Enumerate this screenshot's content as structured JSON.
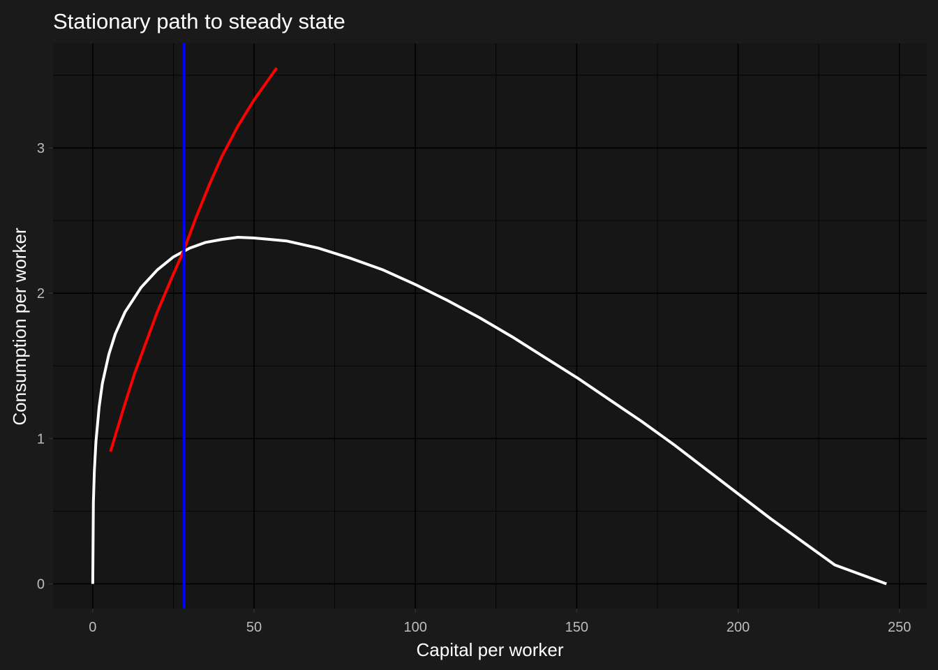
{
  "chart_data": {
    "type": "line",
    "title": "Stationary path to steady state",
    "xlabel": "Capital per worker",
    "ylabel": "Consumption per worker",
    "xlim": [
      -12.3,
      258.5
    ],
    "ylim": [
      -0.17,
      3.72
    ],
    "x_ticks": [
      0,
      50,
      100,
      150,
      200,
      250
    ],
    "y_ticks": [
      0,
      1,
      2,
      3
    ],
    "grid": true,
    "legend": "none",
    "colors": {
      "background": "#1a1a1a",
      "panel": "#161616",
      "grid": "#000000",
      "white_curve": "#ffffff",
      "red_curve": "#ff0000",
      "vline": "#0000ff"
    },
    "series": [
      {
        "color": "#ffffff",
        "points": [
          [
            0,
            0
          ],
          [
            0.2,
            0.56
          ],
          [
            0.5,
            0.78
          ],
          [
            1,
            0.98
          ],
          [
            2,
            1.22
          ],
          [
            3,
            1.38
          ],
          [
            5,
            1.58
          ],
          [
            7,
            1.72
          ],
          [
            10,
            1.87
          ],
          [
            15,
            2.04
          ],
          [
            20,
            2.16
          ],
          [
            25,
            2.25
          ],
          [
            30,
            2.31
          ],
          [
            35,
            2.35
          ],
          [
            40,
            2.37
          ],
          [
            45,
            2.385
          ],
          [
            50,
            2.38
          ],
          [
            60,
            2.36
          ],
          [
            70,
            2.31
          ],
          [
            80,
            2.24
          ],
          [
            90,
            2.16
          ],
          [
            100,
            2.06
          ],
          [
            110,
            1.95
          ],
          [
            120,
            1.83
          ],
          [
            130,
            1.7
          ],
          [
            140,
            1.56
          ],
          [
            150,
            1.42
          ],
          [
            160,
            1.27
          ],
          [
            170,
            1.12
          ],
          [
            180,
            0.96
          ],
          [
            190,
            0.79
          ],
          [
            200,
            0.62
          ],
          [
            210,
            0.45
          ],
          [
            220,
            0.29
          ],
          [
            230,
            0.13
          ],
          [
            246,
            0
          ]
        ]
      },
      {
        "color": "#ff0000",
        "points": [
          [
            5.5,
            0.91
          ],
          [
            7,
            1.02
          ],
          [
            10,
            1.24
          ],
          [
            13,
            1.45
          ],
          [
            16,
            1.63
          ],
          [
            20,
            1.87
          ],
          [
            24,
            2.08
          ],
          [
            28.3,
            2.3
          ],
          [
            32,
            2.52
          ],
          [
            36,
            2.74
          ],
          [
            40,
            2.94
          ],
          [
            45,
            3.15
          ],
          [
            50,
            3.33
          ],
          [
            57,
            3.55
          ]
        ]
      }
    ],
    "vline": {
      "x": 28.3,
      "color": "#0000ff"
    }
  }
}
